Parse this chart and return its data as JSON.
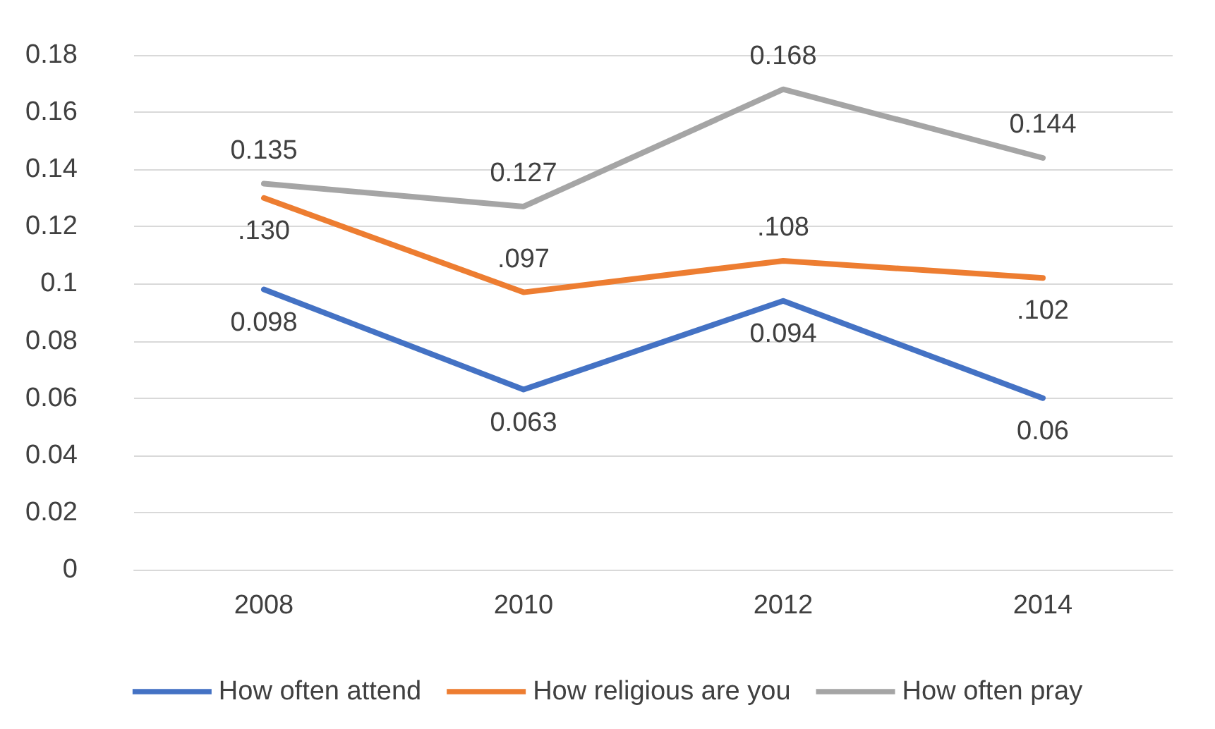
{
  "chart_data": {
    "type": "line",
    "categories": [
      "2008",
      "2010",
      "2012",
      "2014"
    ],
    "series": [
      {
        "name": "How often attend",
        "color": "#4472c4",
        "values": [
          0.098,
          0.063,
          0.094,
          0.06
        ],
        "value_labels": [
          "0.098",
          "0.063",
          "0.094",
          "0.06"
        ]
      },
      {
        "name": "How religious are you",
        "color": "#ed7d31",
        "values": [
          0.13,
          0.097,
          0.108,
          0.102
        ],
        "value_labels": [
          ".130",
          ".097",
          ".108",
          ".102"
        ]
      },
      {
        "name": "How often pray",
        "color": "#a5a5a5",
        "values": [
          0.135,
          0.127,
          0.168,
          0.144
        ],
        "value_labels": [
          "0.135",
          "0.127",
          "0.168",
          "0.144"
        ]
      }
    ],
    "ylim": [
      0,
      0.18
    ],
    "yticks": [
      0,
      0.02,
      0.04,
      0.06,
      0.08,
      0.1,
      0.12,
      0.14,
      0.16,
      0.18
    ],
    "grid": "y",
    "legend": "bottom",
    "marker": "none",
    "line_style": "solid"
  }
}
